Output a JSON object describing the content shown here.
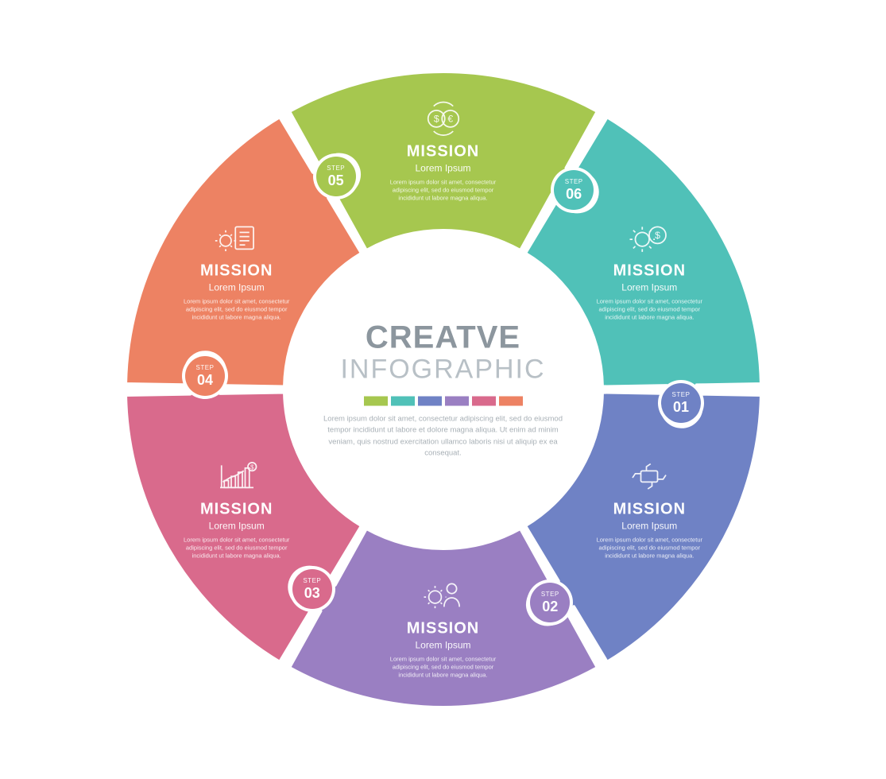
{
  "infographic": {
    "type": "circular-puzzle",
    "segment_count": 6,
    "outer_radius": 400,
    "inner_radius": 200,
    "gap_deg": 2,
    "stroke_color": "#ffffff",
    "stroke_width": 4,
    "knob_radius": 25,
    "knob_label": "STEP",
    "background_color": "#ffffff"
  },
  "center": {
    "title_line1": "CREATVE",
    "title_line2": "INFOGRAPHIC",
    "title1_color": "#8c969e",
    "title2_color": "#b8c0c6",
    "body": "Lorem ipsum dolor sit amet, consectetur adipiscing elit, sed do eiusmod tempor incididunt ut labore et dolore magna aliqua. Ut enim ad minim veniam, quis nostrud exercitation ullamco laboris nisi ut aliquip ex ea consequat.",
    "body_color": "#a8b0b6",
    "swatch_colors": [
      "#a6c74f",
      "#50c1b8",
      "#6f82c5",
      "#9a7fc2",
      "#d96a8c",
      "#ed8263"
    ]
  },
  "segments": [
    {
      "id": 0,
      "angle_center": -90,
      "color": "#a6c74f",
      "knob_color": "#50c1b8",
      "step_num": "06",
      "icon": "currency-exchange",
      "title": "MISSION",
      "subtitle": "Lorem Ipsum",
      "desc": "Lorem ipsum dolor sit amet, consectetur adipiscing elit, sed do eiusmod tempor incididunt ut labore magna aliqua."
    },
    {
      "id": 1,
      "angle_center": -30,
      "color": "#50c1b8",
      "knob_color": "#6f82c5",
      "step_num": "01",
      "icon": "gear-dollar",
      "title": "MISSION",
      "subtitle": "Lorem Ipsum",
      "desc": "Lorem ipsum dolor sit amet, consectetur adipiscing elit, sed do eiusmod tempor incididunt ut labore magna aliqua."
    },
    {
      "id": 2,
      "angle_center": 30,
      "color": "#6f82c5",
      "knob_color": "#9a7fc2",
      "step_num": "02",
      "icon": "hands-team",
      "title": "MISSION",
      "subtitle": "Lorem Ipsum",
      "desc": "Lorem ipsum dolor sit amet, consectetur adipiscing elit, sed do eiusmod tempor incididunt ut labore magna aliqua."
    },
    {
      "id": 3,
      "angle_center": 90,
      "color": "#9a7fc2",
      "knob_color": "#d96a8c",
      "step_num": "03",
      "icon": "person-gear",
      "title": "MISSION",
      "subtitle": "Lorem Ipsum",
      "desc": "Lorem ipsum dolor sit amet, consectetur adipiscing elit, sed do eiusmod tempor incididunt ut labore magna aliqua."
    },
    {
      "id": 4,
      "angle_center": 150,
      "color": "#d96a8c",
      "knob_color": "#ed8263",
      "step_num": "04",
      "icon": "chart-growth",
      "title": "MISSION",
      "subtitle": "Lorem Ipsum",
      "desc": "Lorem ipsum dolor sit amet, consectetur adipiscing elit, sed do eiusmod tempor incididunt ut labore magna aliqua."
    },
    {
      "id": 5,
      "angle_center": 210,
      "color": "#ed8263",
      "knob_color": "#a6c74f",
      "step_num": "05",
      "icon": "clipboard-gear",
      "title": "MISSION",
      "subtitle": "Lorem Ipsum",
      "desc": "Lorem ipsum dolor sit amet, consectetur adipiscing elit, sed do eiusmod tempor incididunt ut labore magna aliqua."
    }
  ]
}
